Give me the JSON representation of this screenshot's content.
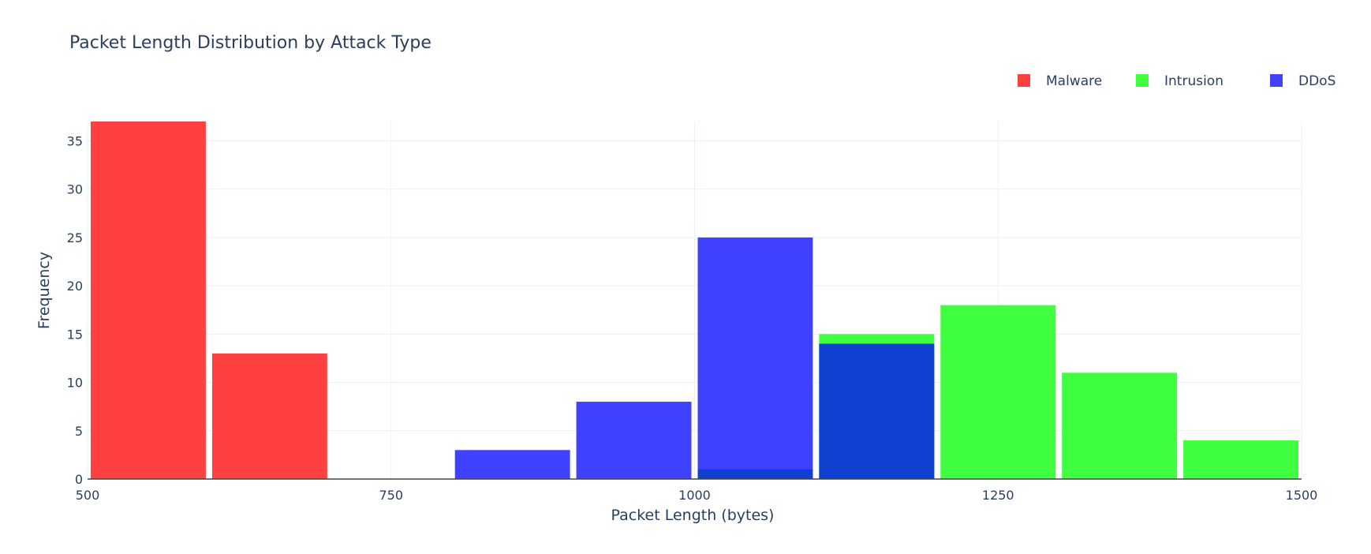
{
  "chart_data": {
    "type": "bar",
    "barmode": "overlay",
    "title": "Packet Length Distribution by Attack Type",
    "xlabel": "Packet Length (bytes)",
    "ylabel": "Frequency",
    "xlim": [
      500,
      1500
    ],
    "ylim": [
      0,
      37
    ],
    "xticks": [
      "500",
      "750",
      "1000",
      "1250",
      "1500"
    ],
    "yticks": [
      "0",
      "5",
      "10",
      "15",
      "20",
      "25",
      "30",
      "35"
    ],
    "grid": true,
    "legend_position": "top-right",
    "bin_width": 100,
    "series": [
      {
        "name": "Malware",
        "color": "#ff4040",
        "bins": [
          {
            "x0": 500,
            "x1": 600,
            "value": 37
          },
          {
            "x0": 600,
            "x1": 700,
            "value": 13
          }
        ]
      },
      {
        "name": "Intrusion",
        "color": "#40ff40",
        "bins": [
          {
            "x0": 1000,
            "x1": 1100,
            "value": 1
          },
          {
            "x0": 1100,
            "x1": 1200,
            "value": 15
          },
          {
            "x0": 1200,
            "x1": 1300,
            "value": 18
          },
          {
            "x0": 1300,
            "x1": 1400,
            "value": 11
          },
          {
            "x0": 1400,
            "x1": 1500,
            "value": 4
          }
        ]
      },
      {
        "name": "DDoS",
        "color": "#4040ff",
        "bins": [
          {
            "x0": 800,
            "x1": 900,
            "value": 3
          },
          {
            "x0": 900,
            "x1": 1000,
            "value": 8
          },
          {
            "x0": 1000,
            "x1": 1100,
            "value": 25
          },
          {
            "x0": 1100,
            "x1": 1200,
            "value": 14
          }
        ]
      }
    ],
    "overlap_color": "#1040d0"
  }
}
